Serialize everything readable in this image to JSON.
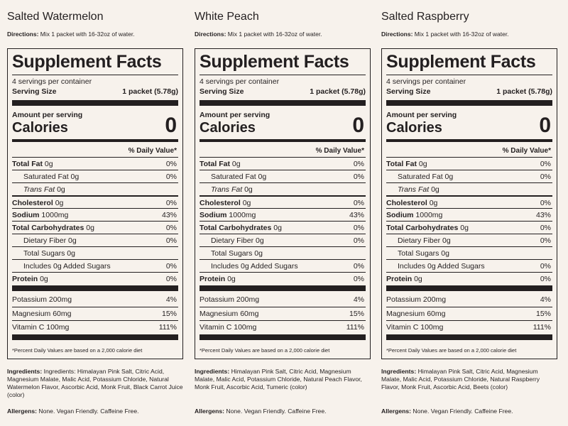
{
  "products": [
    {
      "flavor": "Salted Watermelon",
      "directions_label": "Directions:",
      "directions_text": "Mix 1 packet with 16-32oz of water.",
      "panel_title": "Supplement Facts",
      "servings_per_container": "4 servings per container",
      "serving_size_label": "Serving Size",
      "serving_size_value": "1 packet (5.78g)",
      "amount_per_serving": "Amount per serving",
      "calories_label": "Calories",
      "calories_value": "0",
      "daily_value_header": "% Daily Value*",
      "nutrients": [
        {
          "label": "Total Fat",
          "amount": "0g",
          "dv": "0%"
        },
        {
          "label": "Saturated Fat 0g",
          "dv": "0%"
        },
        {
          "label": "Trans Fat",
          "amount": "0g"
        },
        {
          "label": "Cholesterol",
          "amount": "0g",
          "dv": "0%"
        },
        {
          "label": "Sodium",
          "amount": "1000mg",
          "dv": "43%"
        },
        {
          "label": "Total Carbohydrates",
          "amount": "0g",
          "dv": "0%"
        },
        {
          "label": "Dietary Fiber 0g",
          "dv": "0%"
        },
        {
          "label": "Total Sugars 0g"
        },
        {
          "label": "Includes 0g Added Sugars",
          "dv": "0%"
        },
        {
          "label": "Protein",
          "amount": "0g",
          "dv": "0%"
        },
        {
          "label": "Potassium 200mg",
          "dv": "4%"
        },
        {
          "label": "Magnesium 60mg",
          "dv": "15%"
        },
        {
          "label": "Vitamin C 100mg",
          "dv": "111%"
        }
      ],
      "footnote": "*Percent Daily Values are based on a 2,000 calorie diet",
      "ingredients_label": "Ingredients:",
      "ingredients_text": "Ingredients: Himalayan Pink Salt, Citric Acid, Magnesium Malate, Malic Acid, Potassium Chloride, Natural Watermelon Flavor, Ascorbic Acid, Monk Fruit, Black Carrot Juice (color)",
      "allergens_label": "Allergens:",
      "allergens_text": "None. Vegan Friendly. Caffeine Free."
    },
    {
      "flavor": "White Peach",
      "directions_label": "Directions:",
      "directions_text": "Mix 1 packet with 16-32oz of water.",
      "panel_title": "Supplement Facts",
      "servings_per_container": "4 servings per container",
      "serving_size_label": "Serving Size",
      "serving_size_value": "1 packet (5.78g)",
      "amount_per_serving": "Amount per serving",
      "calories_label": "Calories",
      "calories_value": "0",
      "daily_value_header": "% Daily Value*",
      "nutrients": [
        {
          "label": "Total Fat",
          "amount": "0g",
          "dv": "0%"
        },
        {
          "label": "Saturated Fat 0g",
          "dv": "0%"
        },
        {
          "label": "Trans Fat",
          "amount": "0g"
        },
        {
          "label": "Cholesterol",
          "amount": "0g",
          "dv": "0%"
        },
        {
          "label": "Sodium",
          "amount": "1000mg",
          "dv": "43%"
        },
        {
          "label": "Total Carbohydrates",
          "amount": "0g",
          "dv": "0%"
        },
        {
          "label": "Dietary Fiber 0g",
          "dv": "0%"
        },
        {
          "label": "Total Sugars 0g"
        },
        {
          "label": "Includes 0g Added Sugars",
          "dv": "0%"
        },
        {
          "label": "Protein",
          "amount": "0g",
          "dv": "0%"
        },
        {
          "label": "Potassium 200mg",
          "dv": "4%"
        },
        {
          "label": "Magnesium 60mg",
          "dv": "15%"
        },
        {
          "label": "Vitamin C 100mg",
          "dv": "111%"
        }
      ],
      "footnote": "*Percent Daily Values are based on a 2,000 calorie diet",
      "ingredients_label": "Ingredients:",
      "ingredients_text": "Himalayan Pink Salt, Citric Acid, Magnesium Malate, Malic Acid, Potassium Chloride, Natural Peach Flavor, Monk Fruit, Ascorbic Acid, Tumeric (color)",
      "allergens_label": "Allergens:",
      "allergens_text": "None. Vegan Friendly. Caffeine Free."
    },
    {
      "flavor": "Salted Raspberry",
      "directions_label": "Directions:",
      "directions_text": "Mix 1 packet with 16-32oz of water.",
      "panel_title": "Supplement Facts",
      "servings_per_container": "4 servings per container",
      "serving_size_label": "Serving Size",
      "serving_size_value": "1 packet (5.78g)",
      "amount_per_serving": "Amount per serving",
      "calories_label": "Calories",
      "calories_value": "0",
      "daily_value_header": "% Daily Value*",
      "nutrients": [
        {
          "label": "Total Fat",
          "amount": "0g",
          "dv": "0%"
        },
        {
          "label": "Saturated Fat 0g",
          "dv": "0%"
        },
        {
          "label": "Trans Fat",
          "amount": "0g"
        },
        {
          "label": "Cholesterol",
          "amount": "0g",
          "dv": "0%"
        },
        {
          "label": "Sodium",
          "amount": "1000mg",
          "dv": "43%"
        },
        {
          "label": "Total Carbohydrates",
          "amount": "0g",
          "dv": "0%"
        },
        {
          "label": "Dietary Fiber 0g",
          "dv": "0%"
        },
        {
          "label": "Total Sugars 0g"
        },
        {
          "label": "Includes 0g Added Sugars",
          "dv": "0%"
        },
        {
          "label": "Protein",
          "amount": "0g",
          "dv": "0%"
        },
        {
          "label": "Potassium 200mg",
          "dv": "4%"
        },
        {
          "label": "Magnesium 60mg",
          "dv": "15%"
        },
        {
          "label": "Vitamin C 100mg",
          "dv": "111%"
        }
      ],
      "footnote": "*Percent Daily Values are based on a 2,000 calorie diet",
      "ingredients_label": "Ingredients:",
      "ingredients_text": "Himalayan Pink Salt, Citric Acid, Magnesium Malate, Malic Acid, Potassium Chloride, Natural Raspberry Flavor, Monk Fruit, Ascorbic Acid, Beets (color)",
      "allergens_label": "Allergens:",
      "allergens_text": "None. Vegan Friendly. Caffeine Free."
    }
  ]
}
